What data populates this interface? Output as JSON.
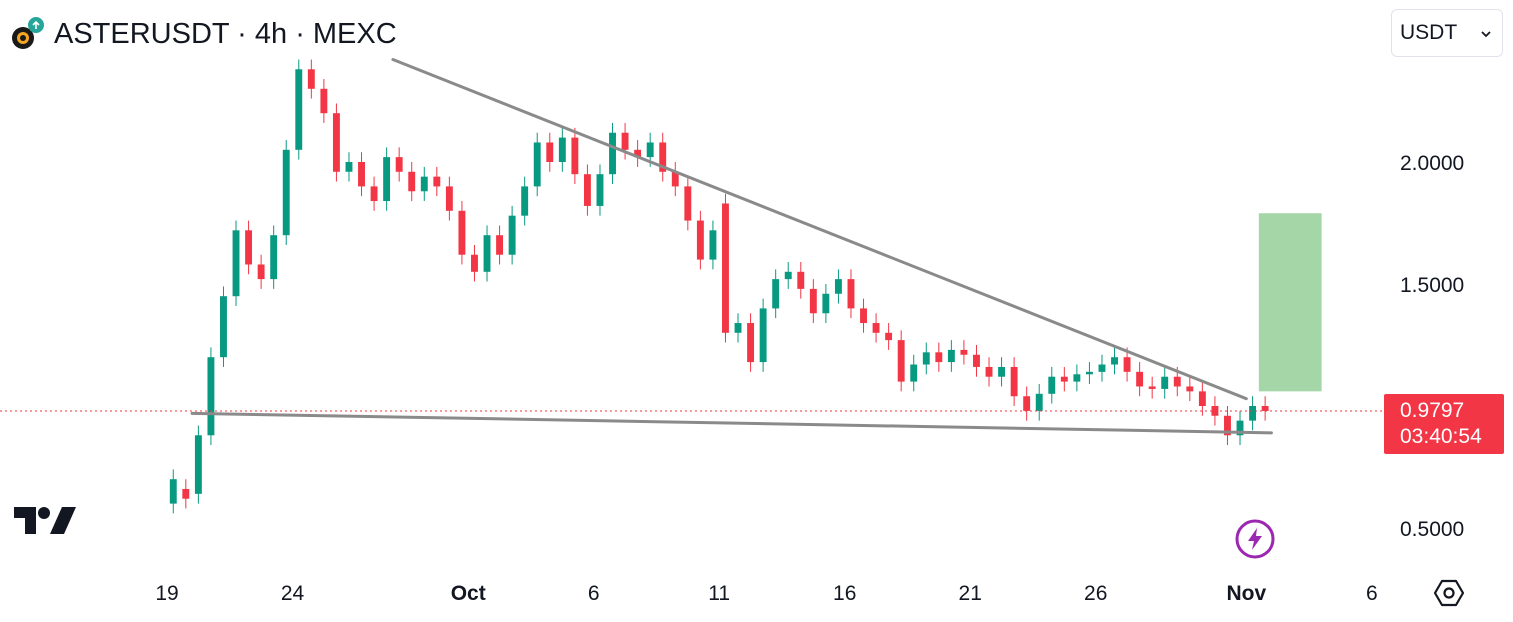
{
  "header": {
    "symbol_title": "ASTERUSDT · 4h · MEXC",
    "logo_icon": "aster-coin-icon"
  },
  "currency_select": {
    "value": "USDT",
    "icon": "chevron-down-icon"
  },
  "price_label": {
    "price": "0.9797",
    "countdown": "03:40:54",
    "color": "#f23645"
  },
  "branding": {
    "logo_icon": "tradingview-logo-icon"
  },
  "controls": {
    "alert_icon": "lightning-bolt-icon",
    "settings_icon": "settings-hexagon-icon"
  },
  "colors": {
    "up": "#089981",
    "down": "#f23645",
    "trendline": "#8a8a8a",
    "target_box": "#a5d6a7",
    "price_line": "#f23645"
  },
  "chart_data": {
    "type": "candlestick",
    "y_ticks": [
      "2.0000",
      "1.5000",
      "0.5000"
    ],
    "y_tick_values": [
      2.0,
      1.5,
      0.5
    ],
    "x_ticks": [
      {
        "label": "19",
        "date": "2025-09-19",
        "bold": false
      },
      {
        "label": "24",
        "date": "2025-09-24",
        "bold": false
      },
      {
        "label": "Oct",
        "date": "2025-10-01",
        "bold": true
      },
      {
        "label": "6",
        "date": "2025-10-06",
        "bold": false
      },
      {
        "label": "11",
        "date": "2025-10-11",
        "bold": false
      },
      {
        "label": "16",
        "date": "2025-10-16",
        "bold": false
      },
      {
        "label": "21",
        "date": "2025-10-21",
        "bold": false
      },
      {
        "label": "26",
        "date": "2025-10-26",
        "bold": false
      },
      {
        "label": "Nov",
        "date": "2025-11-01",
        "bold": true
      },
      {
        "label": "6",
        "date": "2025-11-06",
        "bold": false
      }
    ],
    "last_price": 0.9797,
    "candles": [
      [
        "2025-09-19",
        0.6,
        0.7
      ],
      [
        "2025-09-19T12",
        0.66,
        0.62
      ],
      [
        "2025-09-20",
        0.64,
        0.88
      ],
      [
        "2025-09-20T12",
        0.88,
        1.2
      ],
      [
        "2025-09-21",
        1.2,
        1.45
      ],
      [
        "2025-09-21T12",
        1.45,
        1.72
      ],
      [
        "2025-09-22",
        1.72,
        1.58
      ],
      [
        "2025-09-22T12",
        1.58,
        1.52
      ],
      [
        "2025-09-23",
        1.52,
        1.7
      ],
      [
        "2025-09-23T12",
        1.7,
        2.05
      ],
      [
        "2025-09-24",
        2.05,
        2.38
      ],
      [
        "2025-09-24T12",
        2.38,
        2.3
      ],
      [
        "2025-09-25",
        2.3,
        2.2
      ],
      [
        "2025-09-25T12",
        2.2,
        1.96
      ],
      [
        "2025-09-26",
        1.96,
        2.0
      ],
      [
        "2025-09-26T12",
        2.0,
        1.9
      ],
      [
        "2025-09-27",
        1.9,
        1.84
      ],
      [
        "2025-09-27T12",
        1.84,
        2.02
      ],
      [
        "2025-09-28",
        2.02,
        1.96
      ],
      [
        "2025-09-28T12",
        1.96,
        1.88
      ],
      [
        "2025-09-29",
        1.88,
        1.94
      ],
      [
        "2025-09-29T12",
        1.94,
        1.9
      ],
      [
        "2025-09-30",
        1.9,
        1.8
      ],
      [
        "2025-09-30T12",
        1.8,
        1.62
      ],
      [
        "2025-10-01",
        1.62,
        1.55
      ],
      [
        "2025-10-01T12",
        1.55,
        1.7
      ],
      [
        "2025-10-02",
        1.7,
        1.62
      ],
      [
        "2025-10-02T12",
        1.62,
        1.78
      ],
      [
        "2025-10-03",
        1.78,
        1.9
      ],
      [
        "2025-10-03T12",
        1.9,
        2.08
      ],
      [
        "2025-10-04",
        2.08,
        2.0
      ],
      [
        "2025-10-04T12",
        2.0,
        2.1
      ],
      [
        "2025-10-05",
        2.1,
        1.95
      ],
      [
        "2025-10-05T12",
        1.95,
        1.82
      ],
      [
        "2025-10-06",
        1.82,
        1.95
      ],
      [
        "2025-10-06T12",
        1.95,
        2.12
      ],
      [
        "2025-10-07",
        2.12,
        2.05
      ],
      [
        "2025-10-07T12",
        2.05,
        2.02
      ],
      [
        "2025-10-08",
        2.02,
        2.08
      ],
      [
        "2025-10-08T12",
        2.08,
        1.96
      ],
      [
        "2025-10-09",
        1.96,
        1.9
      ],
      [
        "2025-10-09T12",
        1.9,
        1.76
      ],
      [
        "2025-10-10",
        1.76,
        1.6
      ],
      [
        "2025-10-10T12",
        1.6,
        1.72
      ],
      [
        "2025-10-11",
        1.83,
        1.3
      ],
      [
        "2025-10-11T12",
        1.3,
        1.34
      ],
      [
        "2025-10-12",
        1.34,
        1.18
      ],
      [
        "2025-10-12T12",
        1.18,
        1.4
      ],
      [
        "2025-10-13",
        1.4,
        1.52
      ],
      [
        "2025-10-13T12",
        1.52,
        1.55
      ],
      [
        "2025-10-14",
        1.55,
        1.48
      ],
      [
        "2025-10-14T12",
        1.48,
        1.38
      ],
      [
        "2025-10-15",
        1.38,
        1.46
      ],
      [
        "2025-10-15T12",
        1.46,
        1.52
      ],
      [
        "2025-10-16",
        1.52,
        1.4
      ],
      [
        "2025-10-16T12",
        1.4,
        1.34
      ],
      [
        "2025-10-17",
        1.34,
        1.3
      ],
      [
        "2025-10-17T12",
        1.3,
        1.27
      ],
      [
        "2025-10-18",
        1.27,
        1.1
      ],
      [
        "2025-10-18T12",
        1.1,
        1.17
      ],
      [
        "2025-10-19",
        1.17,
        1.22
      ],
      [
        "2025-10-19T12",
        1.22,
        1.18
      ],
      [
        "2025-10-20",
        1.18,
        1.23
      ],
      [
        "2025-10-20T12",
        1.23,
        1.21
      ],
      [
        "2025-10-21",
        1.21,
        1.16
      ],
      [
        "2025-10-21T12",
        1.16,
        1.12
      ],
      [
        "2025-10-22",
        1.12,
        1.16
      ],
      [
        "2025-10-22T12",
        1.16,
        1.04
      ],
      [
        "2025-10-23",
        1.04,
        0.98
      ],
      [
        "2025-10-23T12",
        0.98,
        1.05
      ],
      [
        "2025-10-24",
        1.05,
        1.12
      ],
      [
        "2025-10-24T12",
        1.12,
        1.1
      ],
      [
        "2025-10-25",
        1.1,
        1.13
      ],
      [
        "2025-10-25T12",
        1.13,
        1.14
      ],
      [
        "2025-10-26",
        1.14,
        1.17
      ],
      [
        "2025-10-26T12",
        1.17,
        1.2
      ],
      [
        "2025-10-27",
        1.2,
        1.14
      ],
      [
        "2025-10-27T12",
        1.14,
        1.08
      ],
      [
        "2025-10-28",
        1.08,
        1.07
      ],
      [
        "2025-10-28T12",
        1.07,
        1.12
      ],
      [
        "2025-10-29",
        1.12,
        1.08
      ],
      [
        "2025-10-29T12",
        1.08,
        1.06
      ],
      [
        "2025-10-30",
        1.06,
        1.0
      ],
      [
        "2025-10-30T12",
        1.0,
        0.96
      ],
      [
        "2025-10-31",
        0.96,
        0.88
      ],
      [
        "2025-10-31T12",
        0.88,
        0.94
      ],
      [
        "2025-11-01",
        0.94,
        1.0
      ],
      [
        "2025-11-01T12",
        1.0,
        0.9797
      ]
    ],
    "drawings": {
      "upper_trendline": {
        "start": [
          "2025-09-28",
          2.42
        ],
        "end": [
          "2025-11-01",
          1.03
        ]
      },
      "lower_trendline": {
        "start": [
          "2025-09-20",
          0.97
        ],
        "end": [
          "2025-11-02",
          0.89
        ]
      },
      "target_box": {
        "x_from": "2025-11-01T12",
        "x_to": "2025-11-04",
        "y_from": 1.06,
        "y_to": 1.79
      },
      "price_line": 0.9797
    }
  }
}
